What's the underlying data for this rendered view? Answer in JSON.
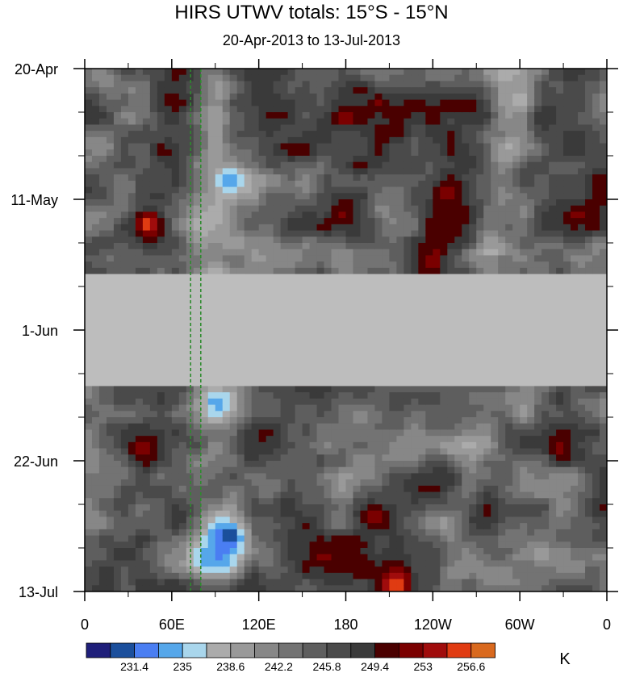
{
  "chart_data": {
    "type": "heatmap",
    "title": "HIRS UTWV totals: 15°S - 15°N",
    "subtitle": "20-Apr-2013 to 13-Jul-2013",
    "xlabel": "",
    "ylabel": "",
    "x_tick_labels": [
      "0",
      "60E",
      "120E",
      "180",
      "120W",
      "60W",
      "0"
    ],
    "x_ticks_deg_east": [
      0,
      60,
      120,
      180,
      240,
      300,
      360
    ],
    "y_tick_labels": [
      "20-Apr",
      "11-May",
      "1-Jun",
      "22-Jun",
      "13-Jul"
    ],
    "y_ticks_date": [
      "2013-04-20",
      "2013-05-11",
      "2013-06-01",
      "2013-06-22",
      "2013-07-13"
    ],
    "xlim_deg_east": [
      0,
      360
    ],
    "ylim_date": [
      "2013-04-20",
      "2013-07-13"
    ],
    "missing_data": {
      "from": "2013-05-23",
      "to": "2013-06-10",
      "color": "#bdbdbd"
    },
    "reference_lines_deg_east": [
      73,
      80
    ],
    "reference_line_color": "#2e8b2e",
    "colorbar": {
      "units": "K",
      "colors": [
        "#1f1f7a",
        "#1b4f9c",
        "#4a7ef2",
        "#56a7ea",
        "#a9d6ec",
        "#ababab",
        "#999999",
        "#878787",
        "#737373",
        "#5e5e5e",
        "#4a4a4a",
        "#3a3a3a",
        "#4a0000",
        "#7a0000",
        "#a00c0c",
        "#e03b12",
        "#d9691e"
      ],
      "label_texts": [
        "231.4",
        "235",
        "238.6",
        "242.2",
        "245.8",
        "249.4",
        "253",
        "256.6"
      ],
      "label_boundaries": [
        2,
        4,
        6,
        8,
        10,
        12,
        14,
        16
      ]
    },
    "features": [
      {
        "lon": 45,
        "date": "2013-05-15",
        "value": 256.6
      },
      {
        "lon": 42,
        "date": "2013-06-20",
        "value": 253
      },
      {
        "lon": 100,
        "date": "2013-05-08",
        "value": 235
      },
      {
        "lon": 100,
        "date": "2013-07-04",
        "value": 231.4
      },
      {
        "lon": 200,
        "date": "2013-07-01",
        "value": 253
      },
      {
        "lon": 215,
        "date": "2013-07-12",
        "value": 256.6
      },
      {
        "lon": 250,
        "date": "2013-05-10",
        "value": 253
      },
      {
        "lon": 300,
        "date": "2013-04-25",
        "value": 238.6
      }
    ]
  }
}
